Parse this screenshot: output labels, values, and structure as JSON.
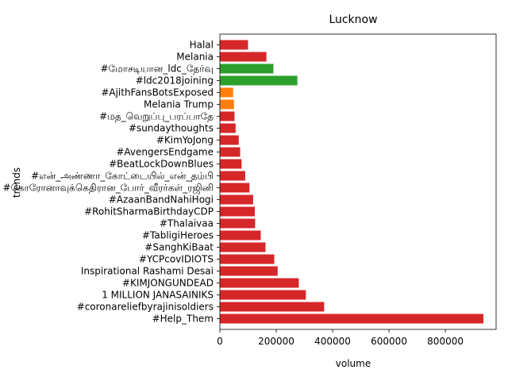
{
  "chart_data": {
    "type": "bar",
    "orientation": "horizontal",
    "title": "Lucknow",
    "xlabel": "volume",
    "ylabel": "trends",
    "xlim": [
      0,
      980000
    ],
    "xticks": [
      0,
      200000,
      400000,
      600000,
      800000
    ],
    "xtick_labels": [
      "0",
      "200000",
      "400000",
      "600000",
      "800000"
    ],
    "grid": false,
    "legend": "none",
    "bars": [
      {
        "label": "Halal",
        "value": 100000,
        "color": "#d62728"
      },
      {
        "label": "Melania",
        "value": 165000,
        "color": "#d62728"
      },
      {
        "label": "#மோசடியான_ldc_தேர்வு",
        "value": 190000,
        "color": "#2ca02c"
      },
      {
        "label": "#ldc2018joining",
        "value": 275000,
        "color": "#2ca02c"
      },
      {
        "label": "#AjithFansBotsExposed",
        "value": 47000,
        "color": "#ff7f0e"
      },
      {
        "label": "Melania Trump",
        "value": 50000,
        "color": "#ff7f0e"
      },
      {
        "label": "#மத_வெறுப்பு_பரப்பாதே",
        "value": 52000,
        "color": "#d62728"
      },
      {
        "label": "#sundaythoughts",
        "value": 56000,
        "color": "#d62728"
      },
      {
        "label": "#KimYoJong",
        "value": 67000,
        "color": "#d62728"
      },
      {
        "label": "#AvengersEndgame",
        "value": 72000,
        "color": "#d62728"
      },
      {
        "label": "#BeatLockDownBlues",
        "value": 77000,
        "color": "#d62728"
      },
      {
        "label": "#என்_அண்ணா_கோட்டையில்_என்_தம்பி",
        "value": 90000,
        "color": "#d62728"
      },
      {
        "label": "#கொரோனாவுக்கெதிரான_போர்_வீரர்கள்_ரஜினி",
        "value": 105000,
        "color": "#d62728"
      },
      {
        "label": "#AzaanBandNahiHogi",
        "value": 118000,
        "color": "#d62728"
      },
      {
        "label": "#RohitSharmaBirthdayCDP",
        "value": 124000,
        "color": "#d62728"
      },
      {
        "label": "#Thalaivaa",
        "value": 125000,
        "color": "#d62728"
      },
      {
        "label": "#TabligiHeroes",
        "value": 145000,
        "color": "#d62728"
      },
      {
        "label": "#SanghKiBaat",
        "value": 162000,
        "color": "#d62728"
      },
      {
        "label": "#YCPcovIDIOTS",
        "value": 193000,
        "color": "#d62728"
      },
      {
        "label": "Inspirational Rashami Desai",
        "value": 205000,
        "color": "#d62728"
      },
      {
        "label": "#KIMJONGUNDEAD",
        "value": 280000,
        "color": "#d62728"
      },
      {
        "label": "1 MILLION JANASAINIKS",
        "value": 305000,
        "color": "#d62728"
      },
      {
        "label": "#coronareliefbyrajinisoldiers",
        "value": 370000,
        "color": "#d62728"
      },
      {
        "label": "#Help_Them",
        "value": 935000,
        "color": "#d62728"
      }
    ]
  }
}
